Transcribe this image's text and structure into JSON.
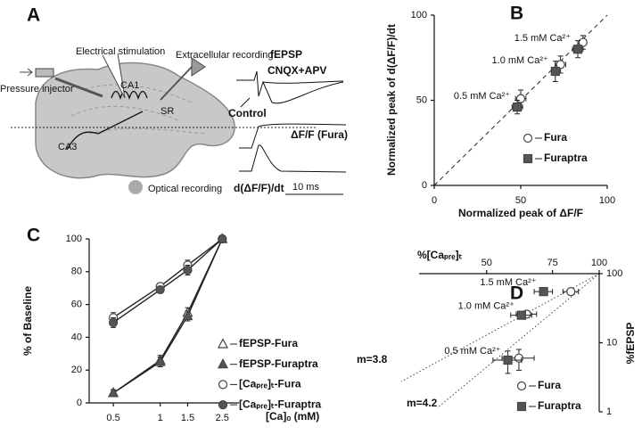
{
  "diagram": {
    "panel": "A",
    "labels": {
      "stimulation": "Electrical stimulation",
      "recording": "Extracellular recording",
      "injector": "Pressure injector",
      "ca1": "CA1",
      "sr": "SR",
      "ca3": "CA3",
      "optical": "Optical recording"
    },
    "traces": {
      "fepsp": "fEPSP",
      "cnqx": "CNQX+APV",
      "control": "Control",
      "dff": "ΔF/F (Fura)",
      "deriv": "d(ΔF/F)/dt",
      "scale": "10 ms"
    }
  },
  "chart_data": [
    {
      "type": "scatter",
      "panel": "B",
      "xlabel": "Normalized peak of ΔF/F",
      "ylabel": "Normalized peak of d(ΔF/F)/dt",
      "xlim": [
        0,
        100
      ],
      "ylim": [
        0,
        100
      ],
      "xticks": [
        0,
        50,
        100
      ],
      "yticks": [
        0,
        50,
        100
      ],
      "xaxis_position": "bottom",
      "yaxis_position": "left",
      "legend": "lower right",
      "annotations": [
        "0.5 mM Ca²⁺",
        "1.0 mM Ca²⁺",
        "1.5 mM Ca²⁺"
      ],
      "series": [
        {
          "name": "Fura",
          "marker": "circle",
          "filled": false,
          "color": "#ffffff",
          "x": [
            50,
            73,
            86
          ],
          "values": [
            51,
            71,
            84
          ],
          "xerr": [
            3,
            3,
            2
          ],
          "yerr": [
            5,
            5,
            4
          ]
        },
        {
          "name": "Furaptra",
          "marker": "square",
          "filled": true,
          "color": "#555555",
          "x": [
            48,
            70,
            83
          ],
          "values": [
            46,
            67,
            80
          ],
          "xerr": [
            3,
            2,
            3
          ],
          "yerr": [
            4,
            6,
            5
          ]
        }
      ]
    },
    {
      "type": "line",
      "panel": "C",
      "xlabel": "[Ca]ₒ (mM)",
      "ylabel": "% of Baseline",
      "x": [
        0.5,
        1,
        1.5,
        2.5
      ],
      "xscale": "log",
      "xlim": [
        0.35,
        3.2
      ],
      "xticks": [
        0.5,
        1,
        1.5,
        2.5
      ],
      "ylim": [
        0,
        100
      ],
      "yticks": [
        0,
        20,
        40,
        60,
        80,
        100
      ],
      "xaxis_position": "bottom",
      "yaxis_position": "left",
      "legend": "lower right",
      "series": [
        {
          "name": "fEPSP-Fura",
          "marker": "triangle",
          "filled": false,
          "color": "#ffffff",
          "values": [
            6,
            26,
            55,
            100
          ],
          "yerr": [
            2,
            3,
            3,
            1
          ]
        },
        {
          "name": "fEPSP-Furaptra",
          "marker": "triangle",
          "filled": true,
          "color": "#555555",
          "values": [
            6,
            25,
            53,
            100
          ],
          "yerr": [
            2,
            3,
            3,
            1
          ]
        },
        {
          "name": "[Caₚᵣₑ]ₜ-Fura",
          "marker": "circle",
          "filled": false,
          "color": "#ffffff",
          "values": [
            52,
            71,
            84,
            100
          ],
          "yerr": [
            3,
            2,
            3,
            1
          ]
        },
        {
          "name": "[Caₚᵣₑ]ₜ-Furaptra",
          "marker": "circle",
          "filled": true,
          "color": "#555555",
          "values": [
            49,
            69,
            81,
            100
          ],
          "yerr": [
            3,
            2,
            3,
            1
          ]
        }
      ]
    },
    {
      "type": "scatter",
      "panel": "D",
      "xlabel": "%[Caₚᵣₑ]ₜ",
      "ylabel": "%fEPSP",
      "xscale": "log",
      "yscale": "log",
      "xlim": [
        33,
        100
      ],
      "ylim": [
        1,
        100
      ],
      "xticks": [
        50,
        75,
        100
      ],
      "yticks": [
        1,
        10,
        100
      ],
      "xaxis_position": "top",
      "yaxis_position": "right",
      "legend": "lower right",
      "annotations": [
        "0.5 mM Ca²⁺",
        "1.0 mM Ca²⁺",
        "1.5 mM Ca²⁺",
        "m=3.8",
        "m=4.2"
      ],
      "series": [
        {
          "name": "Fura",
          "marker": "circle",
          "filled": false,
          "color": "#ffffff",
          "x": [
            61,
            64,
            84
          ],
          "values": [
            6,
            26,
            55
          ],
          "xerr": [
            6,
            4,
            4
          ],
          "yerr": [
            2,
            3,
            5
          ]
        },
        {
          "name": "Furaptra",
          "marker": "square",
          "filled": true,
          "color": "#555555",
          "x": [
            57,
            62,
            71
          ],
          "values": [
            5.6,
            25,
            55
          ],
          "xerr": [
            5,
            4,
            4
          ],
          "yerr": [
            2,
            3,
            5
          ]
        }
      ]
    }
  ]
}
